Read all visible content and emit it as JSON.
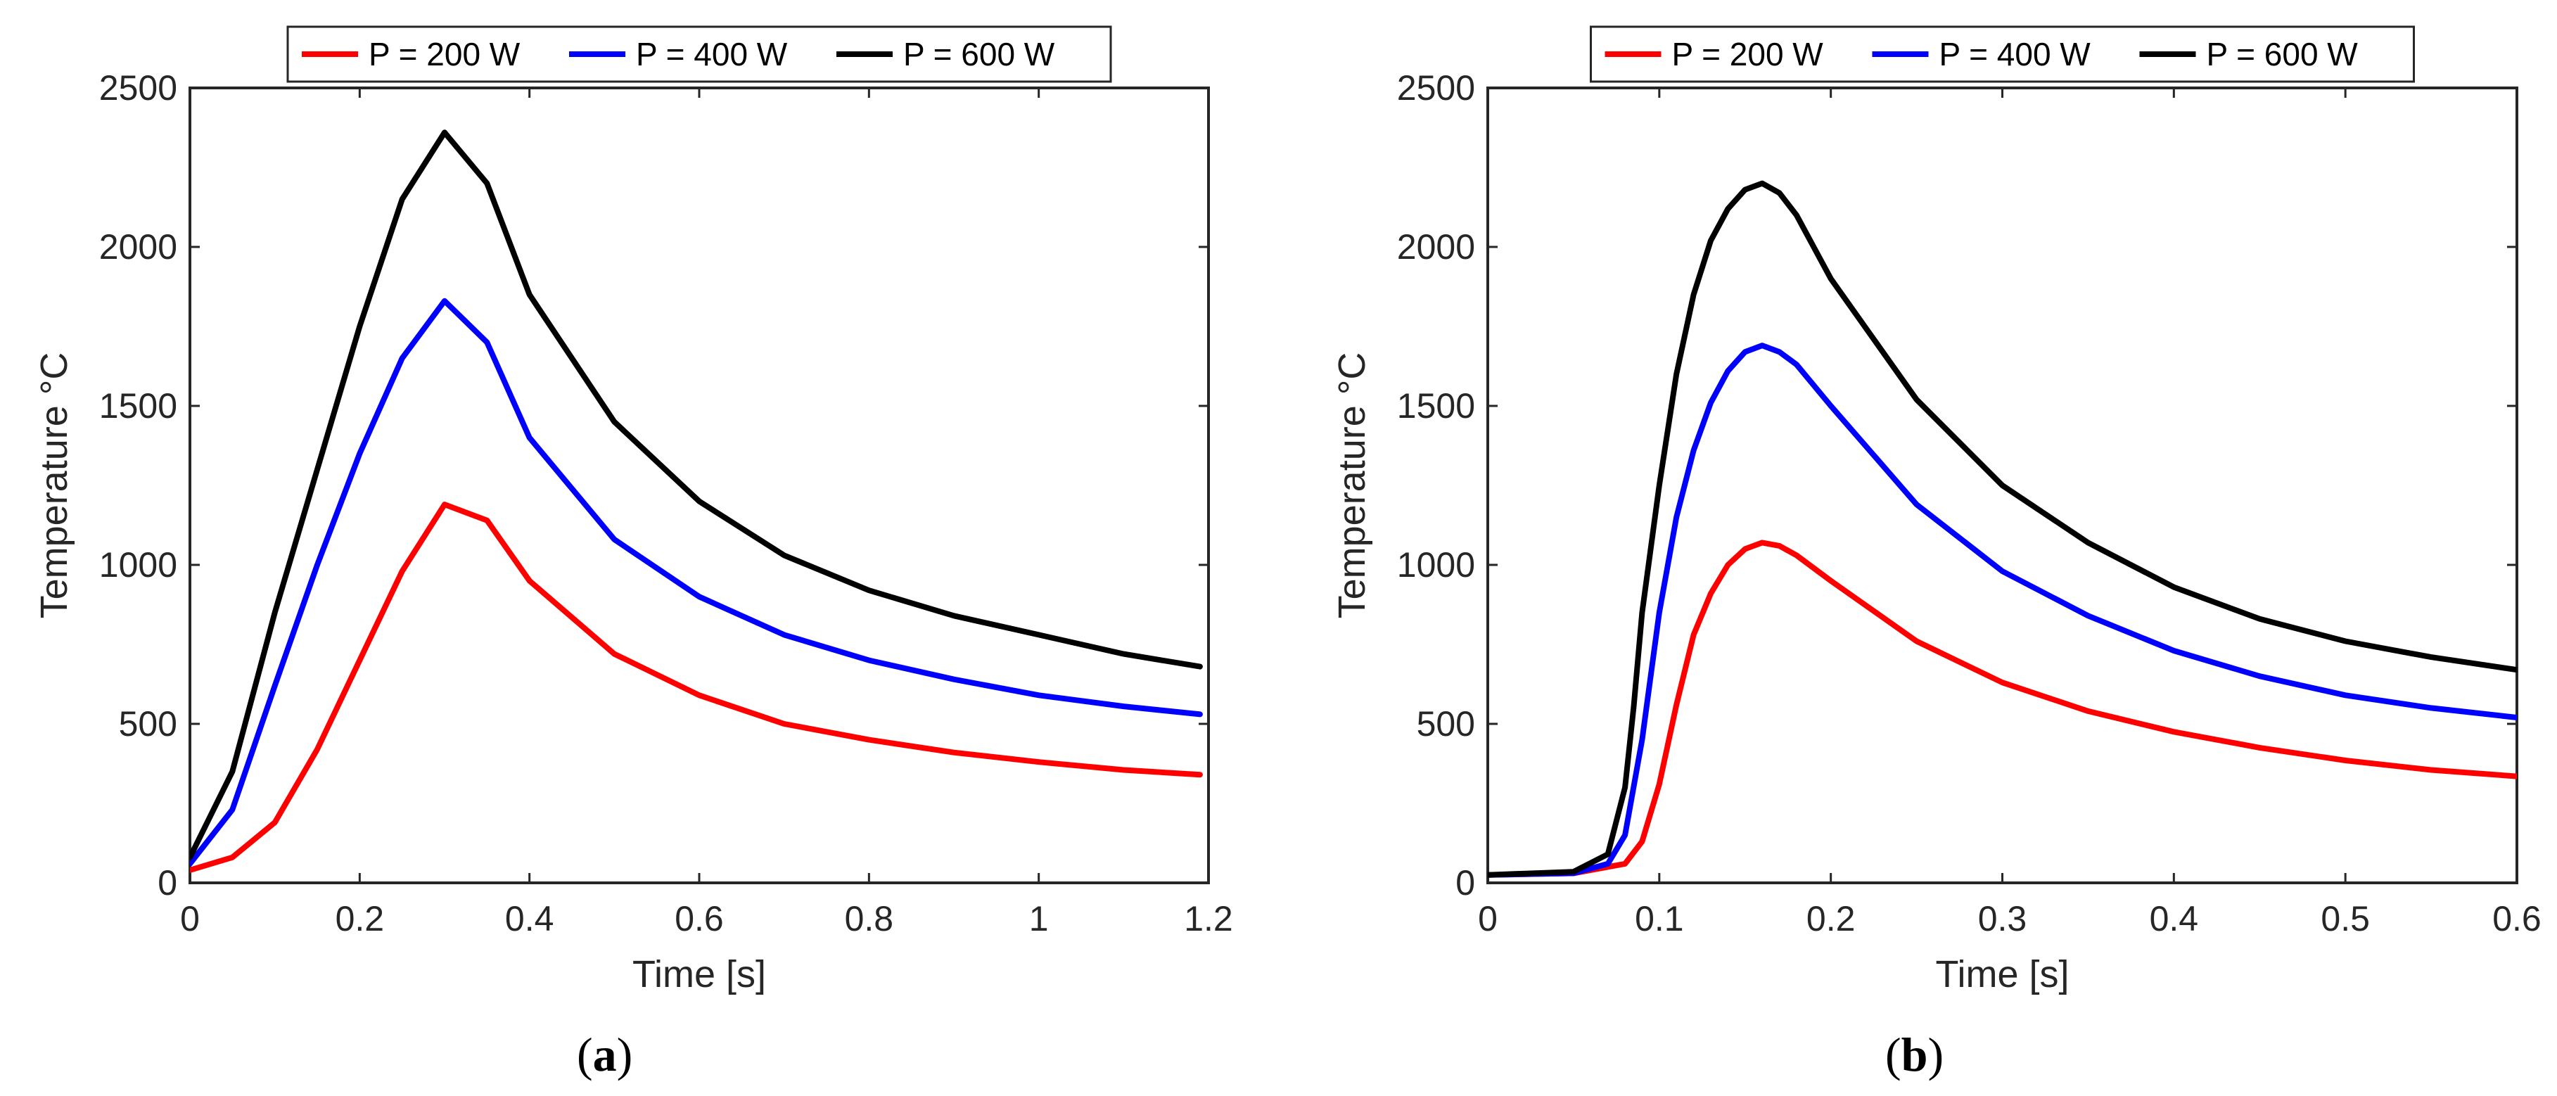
{
  "figure_labels": [
    {
      "open": "(",
      "letter": "a",
      "close": ")"
    },
    {
      "open": "(",
      "letter": "b",
      "close": ")"
    }
  ],
  "chart_data": [
    {
      "type": "line",
      "panel": "a",
      "xlabel": "Time [s]",
      "ylabel": "Temperature",
      "ylabel_unit": "°C",
      "xlim": [
        0,
        1.2
      ],
      "ylim": [
        0,
        2500
      ],
      "xticks": [
        0,
        0.2,
        0.4,
        0.6,
        0.8,
        1,
        1.2
      ],
      "xtick_labels": [
        "0",
        "0.2",
        "0.4",
        "0.6",
        "0.8",
        "1",
        "1.2"
      ],
      "yticks": [
        0,
        500,
        1000,
        1500,
        2000,
        2500
      ],
      "ytick_labels": [
        "0",
        "500",
        "1000",
        "1500",
        "2000",
        "2500"
      ],
      "grid": false,
      "legend_position": "top, outside",
      "series": [
        {
          "name": "P = 200 W",
          "color": "#ff0000",
          "x": [
            0,
            0.05,
            0.1,
            0.15,
            0.2,
            0.25,
            0.3,
            0.35,
            0.4,
            0.5,
            0.6,
            0.7,
            0.8,
            0.9,
            1.0,
            1.1,
            1.19
          ],
          "y": [
            40,
            80,
            190,
            420,
            700,
            980,
            1190,
            1140,
            950,
            720,
            590,
            500,
            450,
            410,
            380,
            355,
            340
          ]
        },
        {
          "name": "P = 400 W",
          "color": "#0000ff",
          "x": [
            0,
            0.05,
            0.1,
            0.15,
            0.2,
            0.25,
            0.3,
            0.35,
            0.4,
            0.5,
            0.6,
            0.7,
            0.8,
            0.9,
            1.0,
            1.1,
            1.19
          ],
          "y": [
            60,
            230,
            620,
            1000,
            1350,
            1650,
            1830,
            1700,
            1400,
            1080,
            900,
            780,
            700,
            640,
            590,
            555,
            530
          ]
        },
        {
          "name": "P = 600 W",
          "color": "#000000",
          "x": [
            0,
            0.05,
            0.1,
            0.15,
            0.2,
            0.25,
            0.3,
            0.35,
            0.4,
            0.5,
            0.6,
            0.7,
            0.8,
            0.9,
            1.0,
            1.1,
            1.19
          ],
          "y": [
            80,
            350,
            850,
            1300,
            1750,
            2150,
            2360,
            2200,
            1850,
            1450,
            1200,
            1030,
            920,
            840,
            780,
            720,
            680
          ]
        }
      ]
    },
    {
      "type": "line",
      "panel": "b",
      "xlabel": "Time [s]",
      "ylabel": "Temperature",
      "ylabel_unit": "°C",
      "xlim": [
        0,
        0.6
      ],
      "ylim": [
        0,
        2500
      ],
      "xticks": [
        0,
        0.1,
        0.2,
        0.3,
        0.4,
        0.5,
        0.6
      ],
      "xtick_labels": [
        "0",
        "0.1",
        "0.2",
        "0.3",
        "0.4",
        "0.5",
        "0.6"
      ],
      "yticks": [
        0,
        500,
        1000,
        1500,
        2000,
        2500
      ],
      "ytick_labels": [
        "0",
        "500",
        "1000",
        "1500",
        "2000",
        "2500"
      ],
      "grid": false,
      "legend_position": "top, outside",
      "series": [
        {
          "name": "P = 200 W",
          "color": "#ff0000",
          "x": [
            0,
            0.05,
            0.08,
            0.09,
            0.1,
            0.11,
            0.12,
            0.13,
            0.14,
            0.15,
            0.16,
            0.17,
            0.18,
            0.2,
            0.25,
            0.3,
            0.35,
            0.4,
            0.45,
            0.5,
            0.55,
            0.6
          ],
          "y": [
            25,
            30,
            60,
            130,
            310,
            560,
            780,
            910,
            1000,
            1050,
            1070,
            1060,
            1030,
            950,
            760,
            630,
            540,
            475,
            425,
            385,
            355,
            335
          ]
        },
        {
          "name": "P = 400 W",
          "color": "#0000ff",
          "x": [
            0,
            0.05,
            0.07,
            0.08,
            0.09,
            0.1,
            0.11,
            0.12,
            0.13,
            0.14,
            0.15,
            0.16,
            0.17,
            0.18,
            0.2,
            0.25,
            0.3,
            0.35,
            0.4,
            0.45,
            0.5,
            0.55,
            0.6
          ],
          "y": [
            25,
            30,
            60,
            150,
            450,
            850,
            1150,
            1360,
            1510,
            1610,
            1670,
            1690,
            1670,
            1630,
            1500,
            1190,
            980,
            840,
            730,
            650,
            590,
            550,
            520
          ]
        },
        {
          "name": "P = 600 W",
          "color": "#000000",
          "x": [
            0,
            0.05,
            0.07,
            0.08,
            0.085,
            0.09,
            0.1,
            0.11,
            0.12,
            0.13,
            0.14,
            0.15,
            0.16,
            0.17,
            0.18,
            0.2,
            0.25,
            0.3,
            0.35,
            0.4,
            0.45,
            0.5,
            0.55,
            0.6
          ],
          "y": [
            25,
            35,
            90,
            300,
            550,
            850,
            1250,
            1600,
            1850,
            2020,
            2120,
            2180,
            2200,
            2170,
            2100,
            1900,
            1520,
            1250,
            1070,
            930,
            830,
            760,
            710,
            670
          ]
        }
      ]
    }
  ]
}
